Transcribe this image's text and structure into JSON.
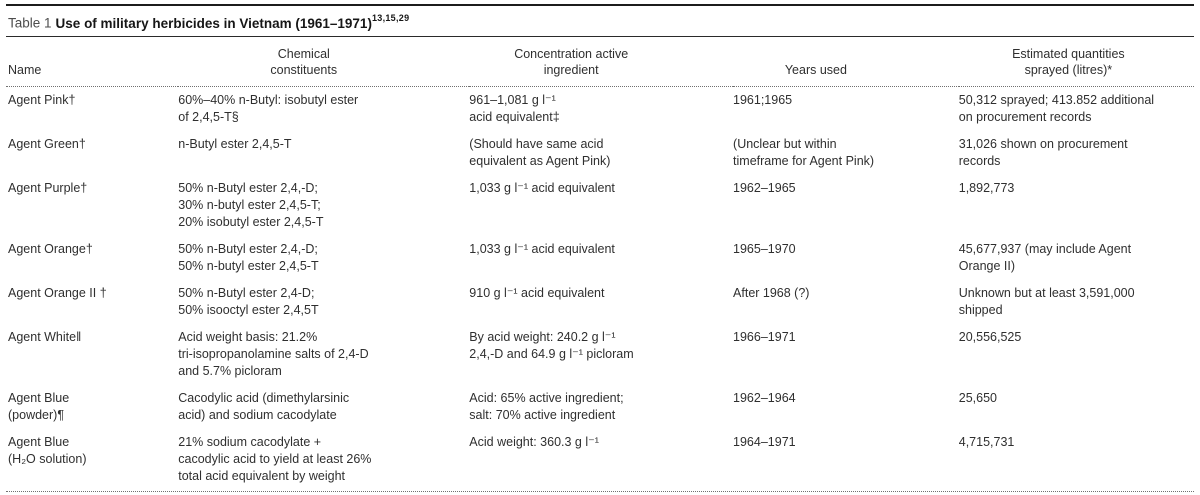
{
  "colors": {
    "ink": "#2f2f2f",
    "title_ink": "#161616",
    "rule": "#1c1c1c",
    "dotted_rule": "#707070",
    "background": "#ffffff"
  },
  "table": {
    "label": "Table 1",
    "title": "Use of military herbicides in Vietnam (1961–1971)",
    "title_refs": "13,15,29",
    "columns": [
      "Name",
      "Chemical\nconstituents",
      "Concentration active\ningredient",
      "Years used",
      "Estimated quantities\nsprayed (litres)*"
    ],
    "rows": [
      {
        "name": "Agent Pink†",
        "chemical": "60%–40% n-Butyl: isobutyl ester\nof 2,4,5-T§",
        "concentration": "961–1,081 g l⁻¹\nacid equivalent‡",
        "years": "1961;1965",
        "quantity": "50,312 sprayed; 413.852 additional\non procurement records"
      },
      {
        "name": "Agent Green†",
        "chemical": "n-Butyl ester 2,4,5-T",
        "concentration": "(Should have same acid\nequivalent as Agent Pink)",
        "years": "(Unclear but within\ntimeframe for Agent Pink)",
        "quantity": "31,026 shown on procurement\nrecords"
      },
      {
        "name": "Agent Purple†",
        "chemical": "50% n-Butyl ester 2,4,-D;\n30% n-butyl ester 2,4,5-T;\n20% isobutyl ester 2,4,5-T",
        "concentration": "1,033 g l⁻¹ acid equivalent",
        "years": "1962–1965",
        "quantity": "1,892,773"
      },
      {
        "name": "Agent Orange†",
        "chemical": "50% n-Butyl ester 2,4,-D;\n50% n-butyl ester 2,4,5-T",
        "concentration": "1,033 g l⁻¹ acid equivalent",
        "years": "1965–1970",
        "quantity": "45,677,937 (may include Agent\nOrange II)"
      },
      {
        "name": "Agent Orange II †",
        "chemical": "50% n-Butyl ester 2,4-D;\n50% isooctyl ester 2,4,5T",
        "concentration": "910 g l⁻¹ acid equivalent",
        "years": "After 1968 (?)",
        "quantity": "Unknown but at least 3,591,000\nshipped"
      },
      {
        "name": "Agent White‖",
        "chemical": "Acid weight basis: 21.2%\ntri-isopropanolamine salts of 2,4-D\nand 5.7% picloram",
        "concentration": "By acid weight: 240.2 g l⁻¹\n2,4,-D and 64.9 g l⁻¹ picloram",
        "years": "1966–1971",
        "quantity": "20,556,525"
      },
      {
        "name": "Agent Blue\n(powder)¶",
        "chemical": "Cacodylic acid (dimethylarsinic\nacid) and sodium cacodylate",
        "concentration": "Acid: 65% active ingredient;\nsalt: 70% active ingredient",
        "years": "1962–1964",
        "quantity": "25,650"
      },
      {
        "name": "Agent Blue\n(H₂O solution)",
        "chemical": "21% sodium cacodylate +\ncacodylic acid to yield at least 26%\ntotal acid equivalent by weight",
        "concentration": "Acid weight: 360.3 g l⁻¹",
        "years": "1964–1971",
        "quantity": "4,715,731"
      }
    ]
  }
}
